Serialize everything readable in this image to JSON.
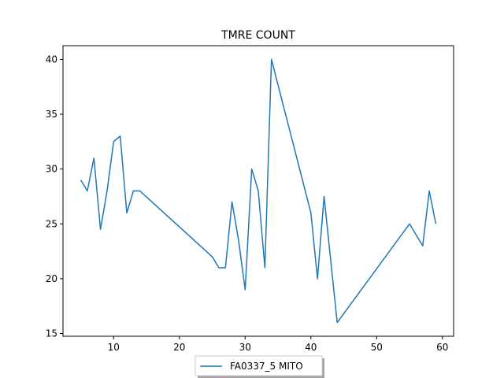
{
  "chart_data": {
    "type": "line",
    "title": "TMRE COUNT",
    "xlabel": "",
    "ylabel": "",
    "xlim": [
      2.3,
      61.7
    ],
    "ylim": [
      14.75,
      41.25
    ],
    "xticks": [
      10,
      20,
      30,
      40,
      50,
      60
    ],
    "yticks": [
      15,
      20,
      25,
      30,
      35,
      40
    ],
    "grid": false,
    "legend_position": "bottom-center",
    "series": [
      {
        "name": "FA0337_5 MITO",
        "color": "#1f77b4",
        "x": [
          5,
          6,
          7,
          8,
          9,
          10,
          11,
          12,
          13,
          14,
          25,
          26,
          27,
          28,
          29,
          30,
          31,
          32,
          33,
          34,
          40,
          41,
          42,
          44,
          55,
          57,
          58,
          59
        ],
        "y": [
          29,
          28,
          31,
          24.5,
          28,
          32.5,
          33,
          26,
          28,
          28,
          22,
          21,
          21,
          27,
          23.5,
          19,
          30,
          28,
          21,
          40,
          26,
          20,
          27.5,
          16,
          25,
          23,
          28,
          25
        ]
      }
    ]
  }
}
